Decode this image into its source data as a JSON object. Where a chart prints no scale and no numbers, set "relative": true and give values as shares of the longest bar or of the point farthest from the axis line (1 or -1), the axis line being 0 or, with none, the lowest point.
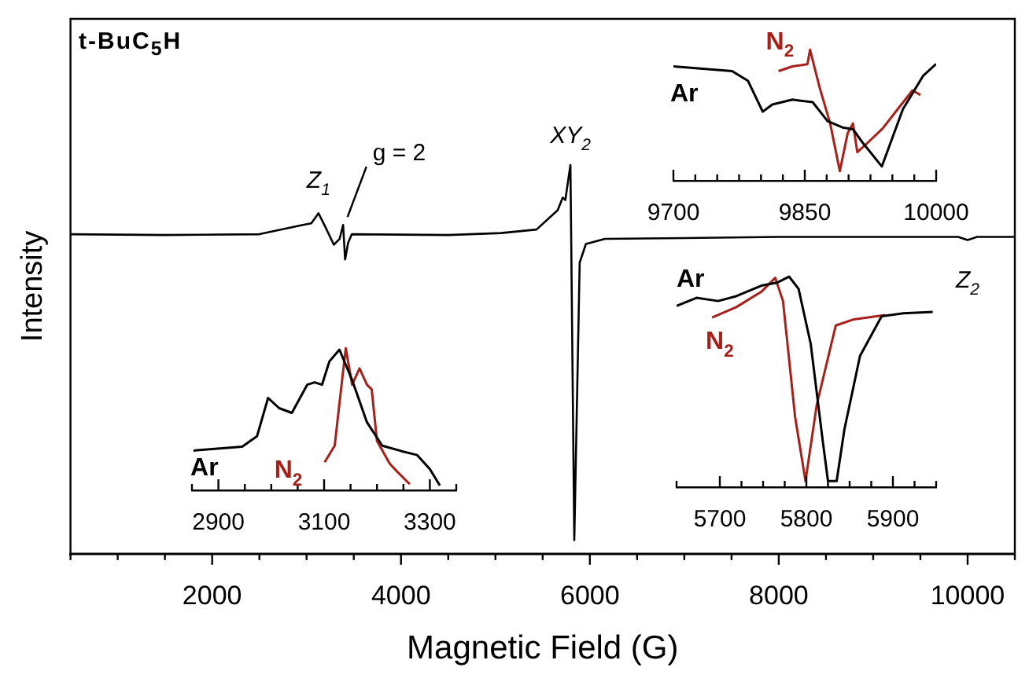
{
  "chart_data": [
    {
      "type": "line",
      "title": "t-BuC$_{5}$H",
      "xlabel": "Magnetic Field (G)",
      "ylabel": "Intensity",
      "relative": true,
      "xlim": [
        500,
        10500
      ],
      "xticks": [
        {
          "value": 500,
          "label": null
        },
        {
          "value": 1000,
          "label": null
        },
        {
          "value": 1500,
          "label": null
        },
        2000,
        {
          "value": 2500,
          "label": null
        },
        {
          "value": 3000,
          "label": null
        },
        {
          "value": 3500,
          "label": null
        },
        4000,
        {
          "value": 4500,
          "label": null
        },
        {
          "value": 5000,
          "label": null
        },
        {
          "value": 5500,
          "label": null
        },
        6000,
        {
          "value": 6500,
          "label": null
        },
        {
          "value": 7000,
          "label": null
        },
        {
          "value": 7500,
          "label": null
        },
        8000,
        {
          "value": 8500,
          "label": null
        },
        {
          "value": 9000,
          "label": null
        },
        {
          "value": 9500,
          "label": null
        },
        10000,
        {
          "value": 10500,
          "label": null
        }
      ],
      "series": [
        {
          "color": "#000000",
          "x": [
            500,
            1500,
            2500,
            2962,
            3050,
            3126,
            3200,
            3289,
            3350,
            3387,
            3408,
            3440,
            3479,
            4500,
            5059,
            5435,
            5659,
            5712,
            5740,
            5794,
            5835,
            5892,
            5958,
            6162,
            7000,
            8000,
            9000,
            9900,
            10000,
            10100,
            10500
          ],
          "values": [
            0.822,
            0.82,
            0.822,
            0.846,
            0.85,
            0.876,
            0.84,
            0.795,
            0.81,
            0.846,
            0.757,
            0.8,
            0.822,
            0.82,
            0.825,
            0.834,
            0.884,
            0.916,
            0.91,
            1,
            0.035,
            0.749,
            0.797,
            0.81,
            0.812,
            0.815,
            0.815,
            0.815,
            0.807,
            0.815,
            0.815
          ]
        }
      ],
      "annotations": [
        {
          "text": "Z$_{1}$",
          "x": 3126,
          "y": 0.876
        },
        {
          "text": "g = 2",
          "x": 3400,
          "y": 0.85
        },
        {
          "text": "XY$_{2}$",
          "x": 5794,
          "y": 1
        },
        {
          "text": "Z$_{2}$",
          "x": 10000,
          "y": 0.807
        }
      ]
    },
    {
      "type": "line",
      "relative": true,
      "xlim": [
        9700,
        10000
      ],
      "xticks": [
        9700,
        {
          "value": 9725,
          "label": null
        },
        {
          "value": 9750,
          "label": null
        },
        {
          "value": 9775,
          "label": null
        },
        {
          "value": 9800,
          "label": null
        },
        {
          "value": 9825,
          "label": null
        },
        9850,
        {
          "value": 9875,
          "label": null
        },
        {
          "value": 9900,
          "label": null
        },
        {
          "value": 9925,
          "label": null
        },
        {
          "value": 9950,
          "label": null
        },
        {
          "value": 9975,
          "label": null
        },
        10000
      ],
      "series": [
        {
          "name": "Ar",
          "color": "#000000",
          "x": [
            9700,
            9767,
            9785,
            9802,
            9813,
            9836,
            9859,
            9876,
            9893,
            9905,
            9916,
            9938,
            9962,
            9985,
            10000
          ],
          "values": [
            0.873,
            0.837,
            0.764,
            0.527,
            0.582,
            0.619,
            0.6,
            0.455,
            0.407,
            0.393,
            0.291,
            0.109,
            0.546,
            0.8,
            0.892
          ]
        },
        {
          "name": "N$_{2}$",
          "color": "#a8201a",
          "x": [
            9820,
            9836,
            9853,
            9856,
            9867,
            9879,
            9890,
            9899,
            9905,
            9910,
            9922,
            9939,
            9956,
            9973,
            9982
          ],
          "values": [
            0.837,
            0.873,
            0.89,
            1,
            0.71,
            0.437,
            0.073,
            0.364,
            0.437,
            0.218,
            0.291,
            0.4,
            0.546,
            0.69,
            0.655
          ]
        }
      ]
    },
    {
      "type": "line",
      "relative": true,
      "xlim": [
        2850,
        3350
      ],
      "xticks": [
        {
          "value": 2850,
          "label": null
        },
        2900,
        {
          "value": 2950,
          "label": null
        },
        {
          "value": 3000,
          "label": null
        },
        {
          "value": 3050,
          "label": null
        },
        3100,
        {
          "value": 3150,
          "label": null
        },
        {
          "value": 3200,
          "label": null
        },
        {
          "value": 3250,
          "label": null
        },
        3300,
        {
          "value": 3350,
          "label": null
        }
      ],
      "series": [
        {
          "name": "Ar",
          "color": "#000000",
          "x": [
            2853,
            2945,
            2973,
            2994,
            3015,
            3039,
            3068,
            3082,
            3096,
            3110,
            3129,
            3153,
            3181,
            3210,
            3248,
            3276,
            3300,
            3319
          ],
          "values": [
            0.28,
            0.307,
            0.38,
            0.65,
            0.578,
            0.545,
            0.743,
            0.76,
            0.743,
            0.908,
            0.99,
            0.776,
            0.479,
            0.314,
            0.274,
            0.248,
            0.149,
            0.033
          ]
        },
        {
          "name": "N$_{2}$",
          "color": "#a8201a",
          "x": [
            3101,
            3120,
            3134,
            3141,
            3153,
            3167,
            3181,
            3190,
            3200,
            3224,
            3238,
            3262
          ],
          "values": [
            0.198,
            0.314,
            0.776,
            1,
            0.743,
            0.858,
            0.743,
            0.71,
            0.347,
            0.188,
            0.132,
            0.043
          ]
        }
      ]
    },
    {
      "type": "line",
      "relative": true,
      "xlim": [
        5650,
        5950
      ],
      "xticks": [
        {
          "value": 5650,
          "label": null
        },
        5700,
        {
          "value": 5725,
          "label": null
        },
        {
          "value": 5750,
          "label": null
        },
        {
          "value": 5775,
          "label": null
        },
        5800,
        {
          "value": 5825,
          "label": null
        },
        {
          "value": 5850,
          "label": null
        },
        {
          "value": 5875,
          "label": null
        },
        5900,
        {
          "value": 5925,
          "label": null
        },
        {
          "value": 5950,
          "label": null
        }
      ],
      "series": [
        {
          "name": "Ar",
          "color": "#000000",
          "x": [
            5650,
            5673,
            5698,
            5719,
            5748,
            5766,
            5780,
            5791,
            5805,
            5819,
            5825,
            5835,
            5844,
            5862,
            5887,
            5912,
            5946
          ],
          "values": [
            0.861,
            0.899,
            0.884,
            0.907,
            0.957,
            0.971,
            1,
            0.942,
            0.681,
            0.217,
            0.029,
            0.029,
            0.275,
            0.623,
            0.812,
            0.826,
            0.832
          ]
        },
        {
          "name": "N$_{2}$",
          "color": "#a8201a",
          "x": [
            5691,
            5719,
            5748,
            5764,
            5773,
            5787,
            5799,
            5812,
            5834,
            5855,
            5891
          ],
          "values": [
            0.806,
            0.855,
            0.928,
            0.994,
            0.884,
            0.333,
            0.029,
            0.391,
            0.768,
            0.797,
            0.817
          ]
        }
      ]
    }
  ]
}
